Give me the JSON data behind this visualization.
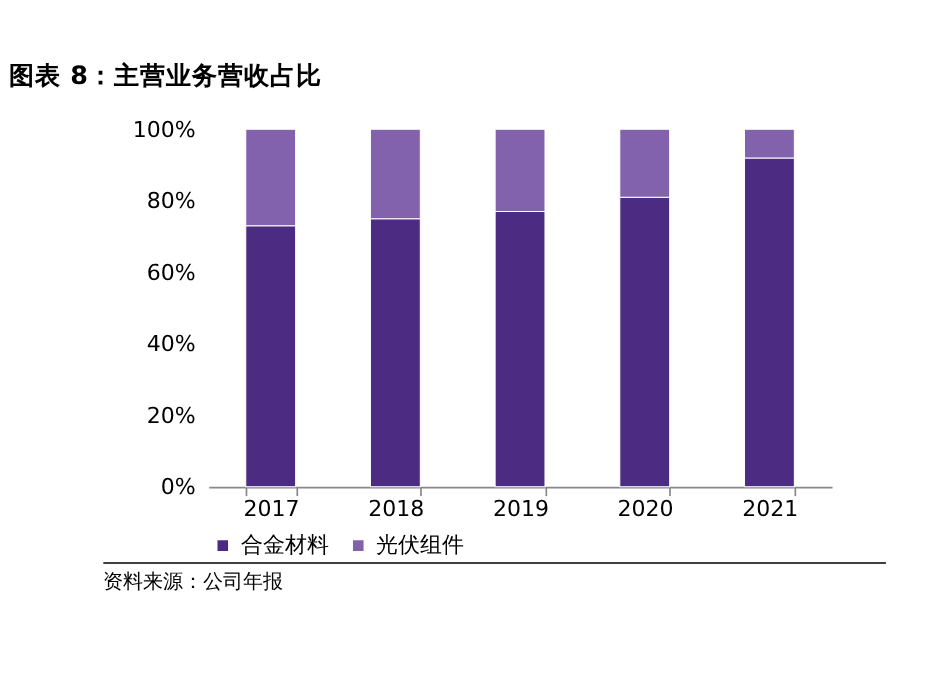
{
  "chart_data": {
    "type": "bar",
    "title": "图表 8：主营业务营收占比",
    "stacked": true,
    "categories": [
      "2017",
      "2018",
      "2019",
      "2020",
      "2021"
    ],
    "series": [
      {
        "name": "合金材料",
        "color": "#4b2c82",
        "values": [
          73,
          75,
          77,
          81,
          92
        ]
      },
      {
        "name": "光伏组件",
        "color": "#8262ac",
        "values": [
          27,
          25,
          23,
          19,
          8
        ]
      }
    ],
    "ylim": [
      0,
      100
    ],
    "yticks": [
      {
        "value": 0,
        "label": "0%"
      },
      {
        "value": 20,
        "label": "20%"
      },
      {
        "value": 40,
        "label": "40%"
      },
      {
        "value": 60,
        "label": "60%"
      },
      {
        "value": 80,
        "label": "80%"
      },
      {
        "value": 100,
        "label": "100%"
      }
    ],
    "grid": false,
    "legend": "bottom",
    "annotations": [
      "资料来源：公司年报"
    ]
  }
}
